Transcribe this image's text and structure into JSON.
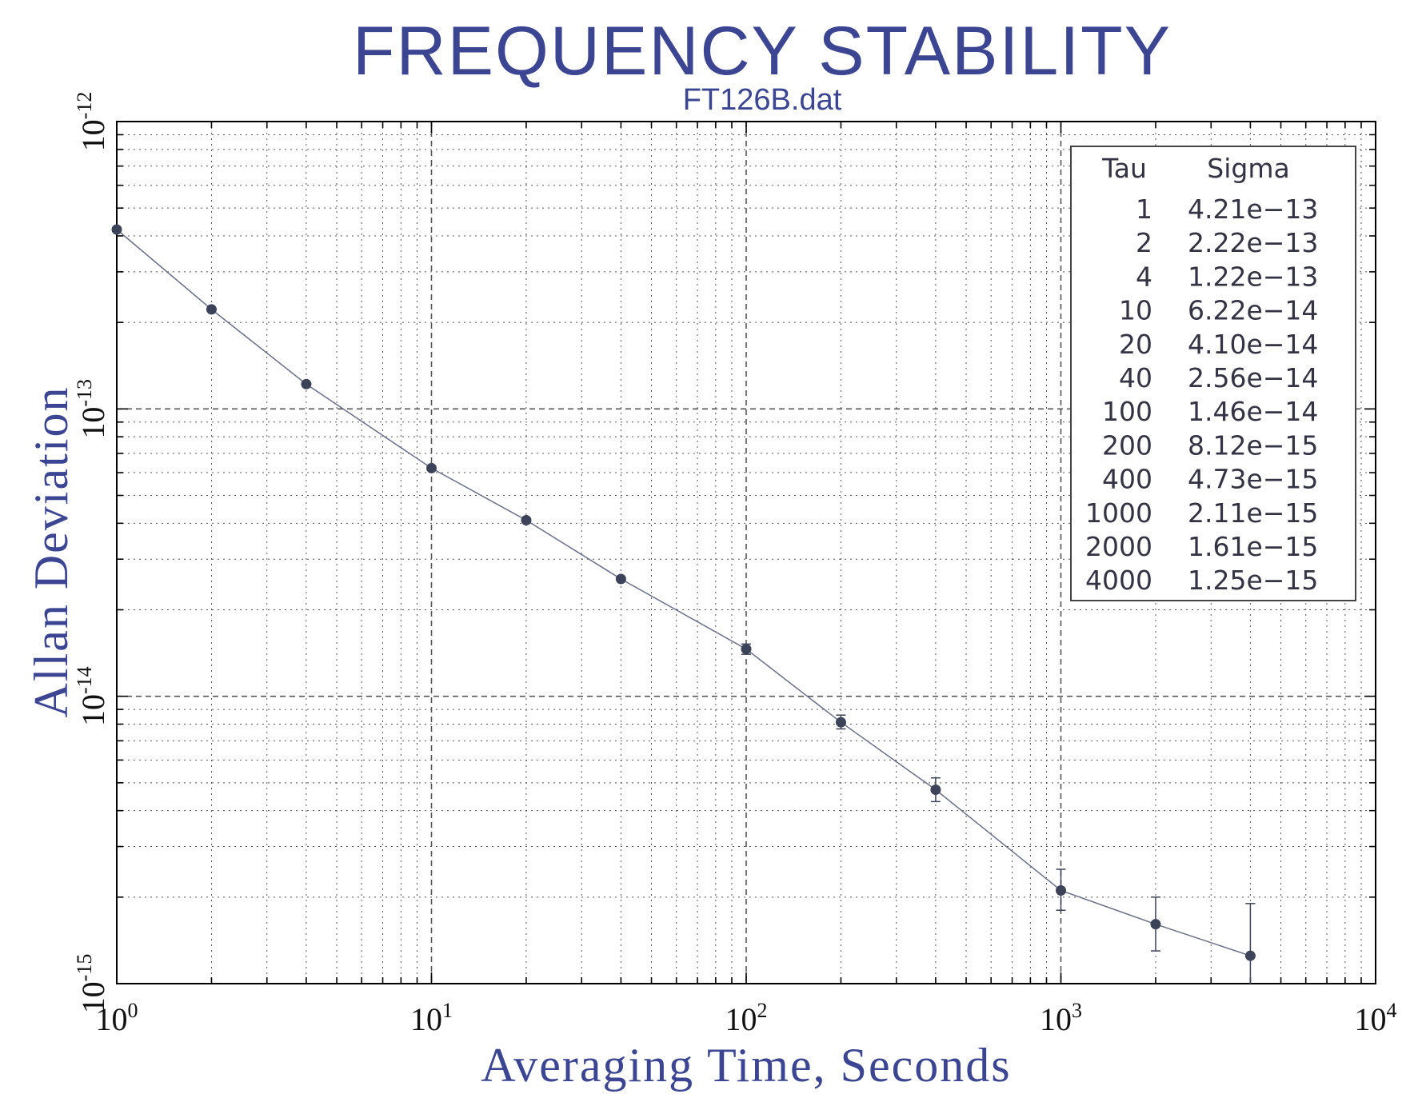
{
  "chart_data": {
    "type": "scatter",
    "title": "FREQUENCY STABILITY",
    "subtitle": "FT126B.dat",
    "xlabel": "Averaging Time, Seconds",
    "ylabel": "Allan Deviation",
    "x_scale": "log",
    "y_scale": "log",
    "xlim": [
      1,
      10000
    ],
    "ylim": [
      1e-15,
      1e-12
    ],
    "grid": true,
    "x_ticks": [
      {
        "base": "10",
        "exp": "0"
      },
      {
        "base": "10",
        "exp": "1"
      },
      {
        "base": "10",
        "exp": "2"
      },
      {
        "base": "10",
        "exp": "3"
      },
      {
        "base": "10",
        "exp": "4"
      }
    ],
    "y_ticks": [
      {
        "base": "10",
        "exp": "-15"
      },
      {
        "base": "10",
        "exp": "-14"
      },
      {
        "base": "10",
        "exp": "-13"
      },
      {
        "base": "10",
        "exp": "-12"
      }
    ],
    "legend": {
      "placement": "top-right",
      "headers": [
        "Tau",
        "Sigma"
      ],
      "rows": [
        [
          "1",
          "4.21e−13"
        ],
        [
          "2",
          "2.22e−13"
        ],
        [
          "4",
          "1.22e−13"
        ],
        [
          "10",
          "6.22e−14"
        ],
        [
          "20",
          "4.10e−14"
        ],
        [
          "40",
          "2.56e−14"
        ],
        [
          "100",
          "1.46e−14"
        ],
        [
          "200",
          "8.12e−15"
        ],
        [
          "400",
          "4.73e−15"
        ],
        [
          "1000",
          "2.11e−15"
        ],
        [
          "2000",
          "1.61e−15"
        ],
        [
          "4000",
          "1.25e−15"
        ]
      ]
    },
    "series": [
      {
        "x": [
          1,
          2,
          4,
          10,
          20,
          40,
          100,
          200,
          400,
          1000,
          2000,
          4000
        ],
        "y": [
          4.21e-13,
          2.22e-13,
          1.22e-13,
          6.22e-14,
          4.1e-14,
          2.56e-14,
          1.46e-14,
          8.12e-15,
          4.73e-15,
          2.11e-15,
          1.61e-15,
          1.25e-15
        ],
        "err_low": [
          4.21e-13,
          2.22e-13,
          1.22e-13,
          6.22e-14,
          4.1e-14,
          2.56e-14,
          1.4e-14,
          7.7e-15,
          4.3e-15,
          1.8e-15,
          1.3e-15,
          9.5e-16
        ],
        "err_high": [
          4.21e-13,
          2.22e-13,
          1.22e-13,
          6.22e-14,
          4.1e-14,
          2.56e-14,
          1.52e-14,
          8.6e-15,
          5.2e-15,
          2.5e-15,
          2e-15,
          1.9e-15
        ]
      }
    ],
    "colors": {
      "line": "#6a6f88",
      "marker": "#3c4257",
      "title": "#3b4592"
    }
  }
}
